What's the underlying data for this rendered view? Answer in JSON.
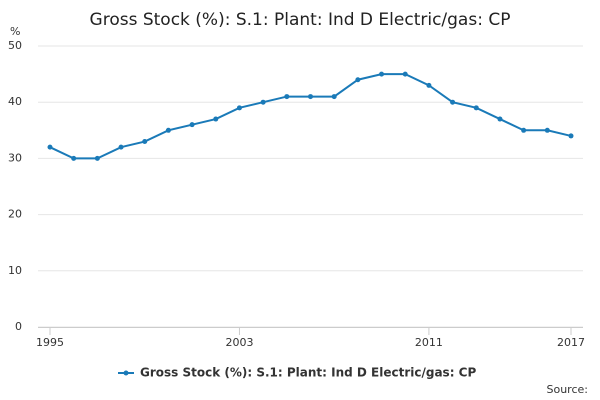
{
  "chart_data": {
    "type": "line",
    "title": "Gross Stock (%): S.1: Plant: Ind D Electric/gas: CP",
    "y_label": "%",
    "source": "Source:",
    "x": [
      1995,
      1996,
      1997,
      1998,
      1999,
      2000,
      2001,
      2002,
      2003,
      2004,
      2005,
      2006,
      2007,
      2008,
      2009,
      2010,
      2011,
      2012,
      2013,
      2014,
      2015,
      2016,
      2017
    ],
    "series": [
      {
        "name": "Gross Stock (%): S.1: Plant: Ind D Electric/gas: CP",
        "color": "#1a7ab8",
        "values": [
          32,
          30,
          30,
          32,
          33,
          35,
          36,
          37,
          39,
          40,
          41,
          41,
          41,
          44,
          45,
          45,
          43,
          40,
          39,
          37,
          35,
          35,
          34
        ]
      }
    ],
    "xlim": [
      1995,
      2017
    ],
    "xticks": [
      1995,
      2003,
      2011,
      2017
    ],
    "ylim": [
      0,
      50
    ],
    "yticks": [
      0,
      10,
      20,
      30,
      40,
      50
    ],
    "grid": true
  }
}
